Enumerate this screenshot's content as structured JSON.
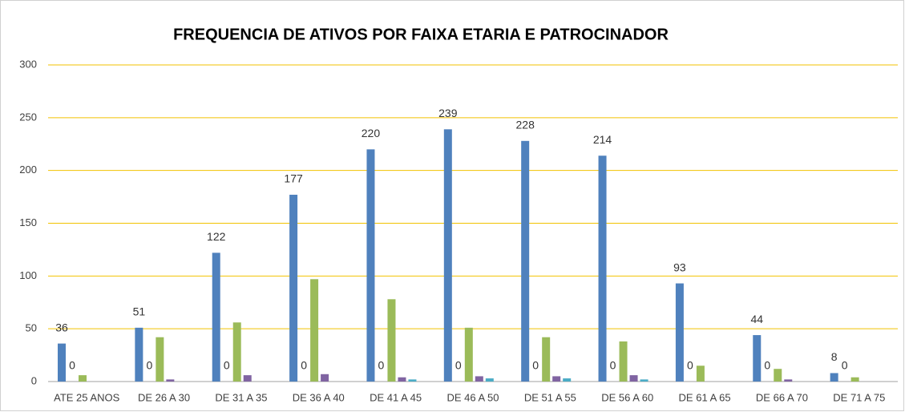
{
  "chart_data": {
    "type": "bar",
    "title": "FREQUENCIA DE ATIVOS POR FAIXA ETARIA E PATROCINADOR",
    "categories": [
      "ATE 25 ANOS",
      "DE 26 A 30",
      "DE 31 A 35",
      "DE 36 A 40",
      "DE 41 A 45",
      "DE 46 A 50",
      "DE 51 A 55",
      "DE 56 A 60",
      "DE 61 A 65",
      "DE 66 A 70",
      "DE 71 A 75"
    ],
    "series": [
      {
        "color": "#4f81bd",
        "show_labels": true,
        "values": [
          36,
          51,
          122,
          177,
          220,
          239,
          228,
          214,
          93,
          44,
          8
        ]
      },
      {
        "color": "#c0504d",
        "show_labels": true,
        "values": [
          0,
          0,
          0,
          0,
          0,
          0,
          0,
          0,
          0,
          0,
          0
        ]
      },
      {
        "color": "#9bbb59",
        "show_labels": false,
        "values": [
          6,
          42,
          56,
          97,
          78,
          51,
          42,
          38,
          15,
          12,
          4
        ]
      },
      {
        "color": "#8064a2",
        "show_labels": false,
        "values": [
          0,
          2,
          6,
          7,
          4,
          5,
          5,
          6,
          0,
          2,
          0
        ]
      },
      {
        "color": "#4bacc6",
        "show_labels": false,
        "values": [
          0,
          0,
          0,
          0,
          2,
          3,
          3,
          2,
          0,
          0,
          0
        ]
      }
    ],
    "ylim": [
      0,
      300
    ],
    "yticks": [
      0,
      50,
      100,
      150,
      200,
      250,
      300
    ],
    "grid": true,
    "grid_color": "#f2c200"
  }
}
